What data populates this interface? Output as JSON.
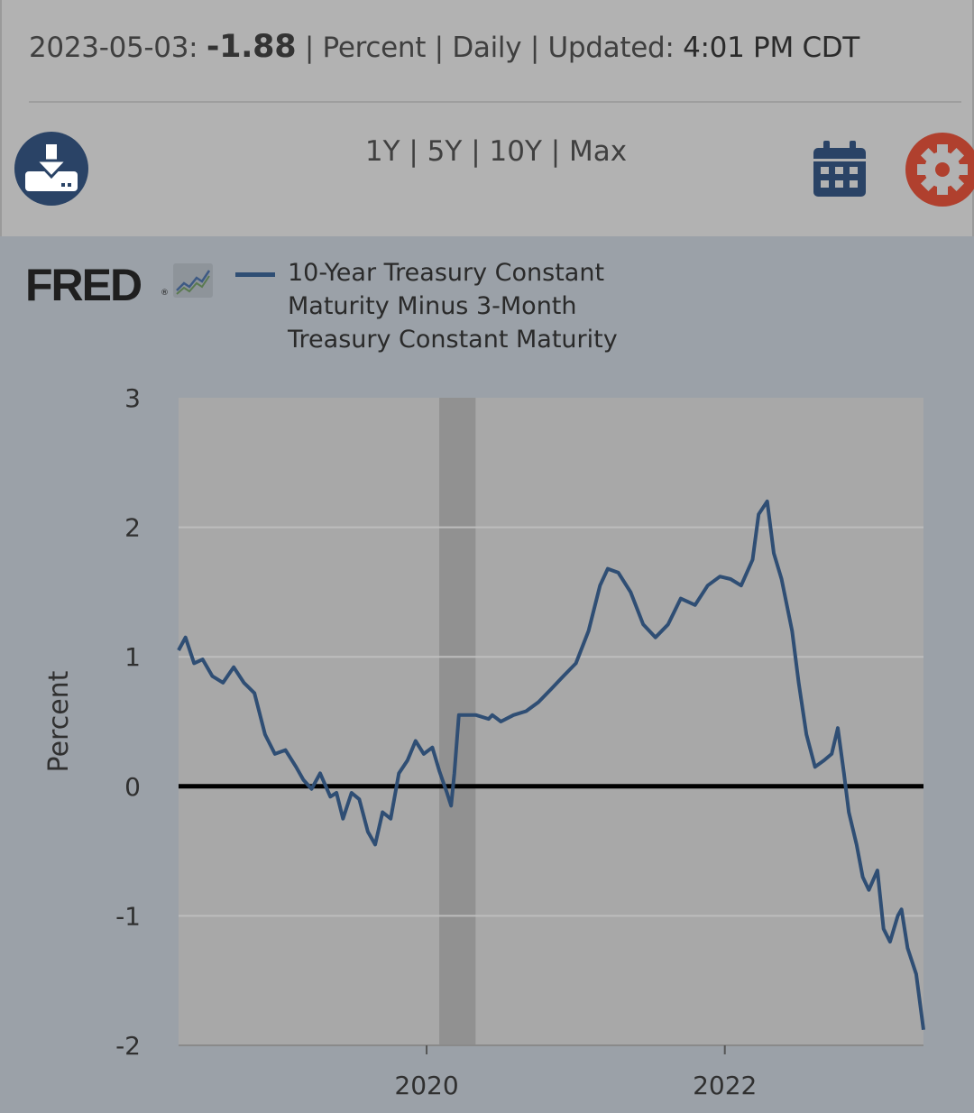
{
  "header": {
    "date": "2023-05-03:",
    "value": "-1.88",
    "units": "| Percent | Daily | Updated:",
    "updated": "4:01 PM CDT"
  },
  "toolbar": {
    "ranges": [
      "1Y",
      "5Y",
      "10Y",
      "Max"
    ],
    "separator": " | "
  },
  "icons": {
    "download": "download-icon",
    "calendar": "calendar-icon",
    "settings": "gear-icon",
    "logo": "fred-logo-icon"
  },
  "colors": {
    "series": "#2f4e74",
    "recession": "#919191",
    "plot_bg": "#a8a8a8",
    "zero_line": "#000000",
    "settings": "#b0402e",
    "download": "#2a4366",
    "calendar": "#2a4366"
  },
  "logo": {
    "text": "FRED"
  },
  "chart_data": {
    "type": "line",
    "title": "",
    "xlabel": "",
    "ylabel": "Percent",
    "ylim": [
      -2,
      3
    ],
    "xlim": [
      "2018-05-03",
      "2023-05-03"
    ],
    "yticks": [
      "3",
      "2",
      "1",
      "0",
      "-1",
      "-2"
    ],
    "xticks": [
      "2020",
      "2022"
    ],
    "grid": true,
    "legend": "top-left",
    "zero_line": true,
    "recessions": [
      {
        "start": "2020-02-01",
        "end": "2020-04-30"
      }
    ],
    "series": [
      {
        "name": "10-Year Treasury Constant Maturity Minus 3-Month Treasury Constant Maturity",
        "x": [
          "2018-05-03",
          "2018-05-20",
          "2018-06-10",
          "2018-07-01",
          "2018-07-25",
          "2018-08-20",
          "2018-09-15",
          "2018-10-10",
          "2018-11-05",
          "2018-12-01",
          "2018-12-25",
          "2019-01-20",
          "2019-02-15",
          "2019-03-05",
          "2019-03-25",
          "2019-04-15",
          "2019-05-10",
          "2019-05-25",
          "2019-06-10",
          "2019-07-01",
          "2019-07-20",
          "2019-08-10",
          "2019-08-28",
          "2019-09-15",
          "2019-10-05",
          "2019-10-25",
          "2019-11-15",
          "2019-12-05",
          "2019-12-25",
          "2020-01-15",
          "2020-02-01",
          "2020-02-20",
          "2020-03-01",
          "2020-03-09",
          "2020-03-20",
          "2020-04-10",
          "2020-05-01",
          "2020-06-01",
          "2020-06-10",
          "2020-07-01",
          "2020-08-01",
          "2020-09-01",
          "2020-10-01",
          "2020-11-01",
          "2020-12-01",
          "2021-01-01",
          "2021-02-01",
          "2021-03-01",
          "2021-03-20",
          "2021-04-15",
          "2021-05-15",
          "2021-06-15",
          "2021-07-15",
          "2021-08-15",
          "2021-09-15",
          "2021-10-20",
          "2021-11-20",
          "2021-12-20",
          "2022-01-15",
          "2022-02-10",
          "2022-03-10",
          "2022-03-25",
          "2022-04-15",
          "2022-05-01",
          "2022-05-20",
          "2022-06-15",
          "2022-07-01",
          "2022-07-20",
          "2022-08-10",
          "2022-09-01",
          "2022-09-20",
          "2022-10-05",
          "2022-10-20",
          "2022-11-01",
          "2022-11-20",
          "2022-12-05",
          "2022-12-20",
          "2023-01-10",
          "2023-01-25",
          "2023-02-10",
          "2023-03-01",
          "2023-03-10",
          "2023-03-25",
          "2023-04-15",
          "2023-05-03"
        ],
        "values": [
          1.05,
          1.15,
          0.95,
          0.98,
          0.85,
          0.8,
          0.92,
          0.8,
          0.72,
          0.4,
          0.25,
          0.28,
          0.15,
          0.05,
          -0.02,
          0.1,
          -0.08,
          -0.05,
          -0.25,
          -0.05,
          -0.1,
          -0.35,
          -0.45,
          -0.2,
          -0.25,
          0.1,
          0.2,
          0.35,
          0.25,
          0.3,
          0.12,
          -0.05,
          -0.15,
          0.1,
          0.55,
          0.55,
          0.55,
          0.52,
          0.55,
          0.5,
          0.55,
          0.58,
          0.65,
          0.75,
          0.85,
          0.95,
          1.2,
          1.55,
          1.68,
          1.65,
          1.5,
          1.25,
          1.15,
          1.25,
          1.45,
          1.4,
          1.55,
          1.62,
          1.6,
          1.55,
          1.75,
          2.1,
          2.2,
          1.8,
          1.6,
          1.2,
          0.8,
          0.4,
          0.15,
          0.2,
          0.25,
          0.45,
          0.1,
          -0.2,
          -0.45,
          -0.7,
          -0.8,
          -0.65,
          -1.1,
          -1.2,
          -1.0,
          -0.95,
          -1.25,
          -1.45,
          -1.88
        ]
      }
    ]
  }
}
